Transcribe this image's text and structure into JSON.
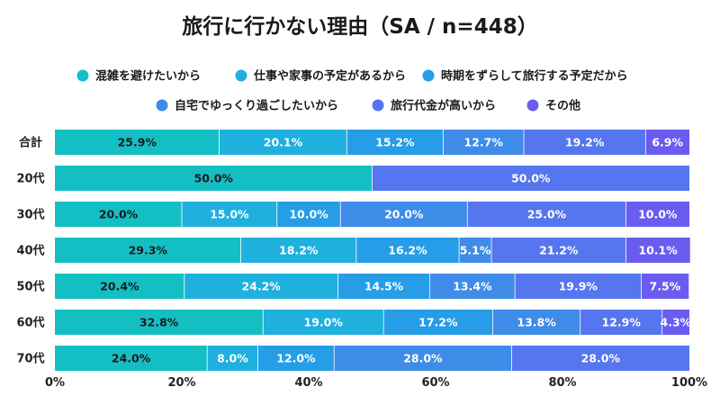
{
  "chart_data": {
    "type": "bar",
    "orientation": "horizontal",
    "stacked": true,
    "title": "旅行に行かない理由（SA / n=448）",
    "categories": [
      "合計",
      "20代",
      "30代",
      "40代",
      "50代",
      "60代",
      "70代"
    ],
    "series": [
      {
        "name": "混雑を避けたいから",
        "color": "#14bfc4",
        "labels": [
          "25.9%",
          "50.0%",
          "20.0%",
          "29.3%",
          "20.4%",
          "32.8%",
          "24.0%"
        ],
        "values": [
          25.9,
          50.0,
          20.0,
          29.3,
          20.4,
          32.8,
          24.0
        ]
      },
      {
        "name": "仕事や家事の予定があるから",
        "color": "#1fb0de",
        "labels": [
          "20.1%",
          "",
          "15.0%",
          "18.2%",
          "24.2%",
          "19.0%",
          "8.0%"
        ],
        "values": [
          20.1,
          0,
          15.0,
          18.2,
          24.2,
          19.0,
          8.0
        ]
      },
      {
        "name": "時期をずらして旅行する予定だから",
        "color": "#269de6",
        "labels": [
          "15.2%",
          "",
          "10.0%",
          "16.2%",
          "14.5%",
          "17.2%",
          "12.0%"
        ],
        "values": [
          15.2,
          0,
          10.0,
          16.2,
          14.5,
          17.2,
          12.0
        ]
      },
      {
        "name": "自宅でゆっくり過ごしたいから",
        "color": "#3f8be8",
        "labels": [
          "12.7%",
          "",
          "20.0%",
          "5.1%",
          "13.4%",
          "13.8%",
          "28.0%"
        ],
        "values": [
          12.7,
          0,
          20.0,
          5.1,
          13.4,
          13.8,
          28.0
        ]
      },
      {
        "name": "旅行代金が高いから",
        "color": "#5576ee",
        "labels": [
          "19.2%",
          "50.0%",
          "25.0%",
          "21.2%",
          "19.9%",
          "12.9%",
          "28.0%"
        ],
        "values": [
          19.2,
          50.0,
          25.0,
          21.2,
          19.9,
          12.9,
          28.0
        ]
      },
      {
        "name": "その他",
        "color": "#6a5cef",
        "labels": [
          "6.9%",
          "",
          "10.0%",
          "10.1%",
          "7.5%",
          "4.3%",
          ""
        ],
        "values": [
          6.9,
          0,
          10.0,
          10.1,
          7.5,
          4.3,
          0
        ]
      }
    ],
    "xlim": [
      0,
      100
    ],
    "xticks": [
      "0%",
      "20%",
      "40%",
      "60%",
      "80%",
      "100%"
    ],
    "legend": "top-center",
    "grid": false
  }
}
